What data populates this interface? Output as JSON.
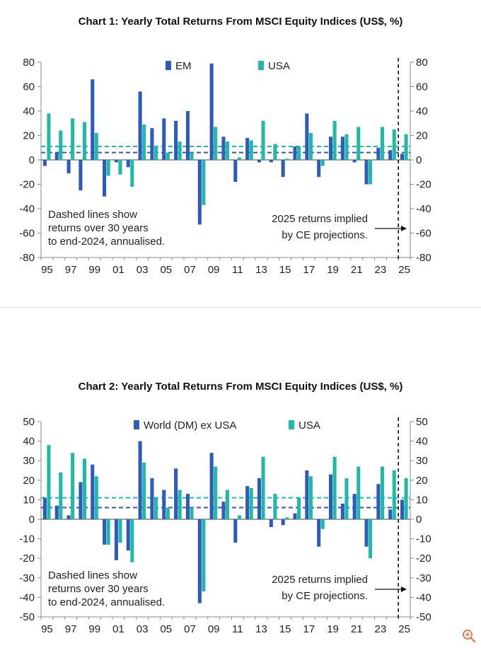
{
  "charts": [
    {
      "title": "Chart 1: Yearly Total Returns From MSCI Equity Indices (US$, %)",
      "chart_data": {
        "type": "bar",
        "title": "Chart 1: Yearly Total Returns From MSCI Equity Indices (US$, %)",
        "categories": [
          "1995",
          "1996",
          "1997",
          "1998",
          "1999",
          "2000",
          "2001",
          "2002",
          "2003",
          "2004",
          "2005",
          "2006",
          "2007",
          "2008",
          "2009",
          "2010",
          "2011",
          "2012",
          "2013",
          "2014",
          "2015",
          "2016",
          "2017",
          "2018",
          "2019",
          "2020",
          "2021",
          "2022",
          "2023",
          "2024",
          "2025"
        ],
        "tick_labels": [
          "95",
          "97",
          "99",
          "01",
          "03",
          "05",
          "07",
          "09",
          "11",
          "13",
          "15",
          "17",
          "19",
          "21",
          "23",
          "25"
        ],
        "yticks": [
          "80",
          "60",
          "40",
          "20",
          "0",
          "-20",
          "-40",
          "-60",
          "-80"
        ],
        "ylim": [
          -80,
          80
        ],
        "series": [
          {
            "name": "EM",
            "color": "#2E5BBA",
            "values": [
              -5,
              6,
              -11,
              -25,
              66,
              -30,
              -2,
              -6,
              56,
              26,
              34,
              32,
              40,
              -53,
              79,
              19,
              -18,
              18,
              -2,
              -2,
              -14,
              11,
              38,
              -14,
              19,
              19,
              -2,
              -20,
              10,
              8,
              5
            ]
          },
          {
            "name": "USA",
            "color": "#21B8A8",
            "values": [
              38,
              24,
              34,
              31,
              22,
              -13,
              -12,
              -22,
              29,
              11,
              6,
              15,
              6,
              -37,
              27,
              15,
              2,
              16,
              32,
              13,
              1,
              11,
              22,
              -5,
              32,
              21,
              27,
              -20,
              27,
              25,
              21
            ]
          }
        ],
        "dashed_lines": [
          {
            "series": "USA",
            "value": 11,
            "color": "#21B8A8"
          },
          {
            "series": "EM",
            "value": 6,
            "color": "#2E5BBA"
          }
        ],
        "divider_between": [
          "2024",
          "2025"
        ],
        "annotations": [
          "Dashed lines show",
          "returns over 30 years",
          "to end-2024, annualised.",
          "2025 returns implied",
          "by CE projections."
        ]
      }
    },
    {
      "title": "Chart 2: Yearly Total Returns From MSCI Equity Indices (US$, %)",
      "chart_data": {
        "type": "bar",
        "title": "Chart 2: Yearly Total Returns From MSCI Equity Indices (US$, %)",
        "categories": [
          "1995",
          "1996",
          "1997",
          "1998",
          "1999",
          "2000",
          "2001",
          "2002",
          "2003",
          "2004",
          "2005",
          "2006",
          "2007",
          "2008",
          "2009",
          "2010",
          "2011",
          "2012",
          "2013",
          "2014",
          "2015",
          "2016",
          "2017",
          "2018",
          "2019",
          "2020",
          "2021",
          "2022",
          "2023",
          "2024",
          "2025"
        ],
        "tick_labels": [
          "95",
          "97",
          "99",
          "01",
          "03",
          "05",
          "07",
          "09",
          "11",
          "13",
          "15",
          "17",
          "19",
          "21",
          "23",
          "25"
        ],
        "yticks": [
          "50",
          "40",
          "30",
          "20",
          "10",
          "0",
          "-10",
          "-20",
          "-30",
          "-40",
          "-50"
        ],
        "ylim": [
          -50,
          50
        ],
        "series": [
          {
            "name": "World (DM) ex USA",
            "color": "#2E5BBA",
            "values": [
              11,
              7,
              2,
              19,
              28,
              -13,
              -21,
              -16,
              40,
              21,
              15,
              26,
              13,
              -43,
              34,
              9,
              -12,
              17,
              21,
              -4,
              -3,
              3,
              25,
              -14,
              23,
              8,
              13,
              -14,
              18,
              5,
              10
            ]
          },
          {
            "name": "USA",
            "color": "#21B8A8",
            "values": [
              38,
              24,
              34,
              31,
              22,
              -13,
              -12,
              -22,
              29,
              11,
              6,
              15,
              6,
              -37,
              27,
              15,
              2,
              16,
              32,
              13,
              1,
              11,
              22,
              -5,
              32,
              21,
              27,
              -20,
              27,
              25,
              21
            ]
          }
        ],
        "dashed_lines": [
          {
            "series": "USA",
            "value": 11,
            "color": "#21B8A8"
          },
          {
            "series": "World (DM) ex USA",
            "value": 6,
            "color": "#2E5BBA"
          }
        ],
        "divider_between": [
          "2024",
          "2025"
        ],
        "annotations": [
          "Dashed lines show",
          "returns over 30 years",
          "to end-2024, annualised.",
          "2025 returns implied",
          "by CE projections."
        ]
      }
    }
  ],
  "chart_data": [
    {
      "type": "bar",
      "ref": "charts.0.chart_data"
    },
    {
      "type": "bar",
      "ref": "charts.1.chart_data"
    }
  ],
  "icons": {
    "zoom": "zoom-in-icon"
  }
}
